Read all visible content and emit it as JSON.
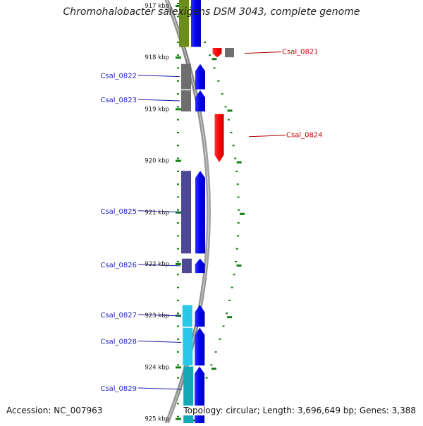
{
  "title": "Chromohalobacter salexigens DSM 3043, complete genome",
  "footer": {
    "accession": "Accession: NC_007963",
    "summary": "Topology: circular; Length: 3,696,649 bp; Genes: 3,388"
  },
  "colors": {
    "forward_gene": "#0000ee",
    "reverse_gene": "#ff0000",
    "forward_label": "#2020c0",
    "reverse_label": "#cc0000",
    "tick": "#138013",
    "backbone": "#8c8c8c",
    "cog_gray": "#6e6e6e",
    "cog_purple": "#4c4896",
    "cog_olive": "#6b8c1e",
    "cog_cyan": "#28c8e8",
    "cog_teal": "#14a8b4"
  },
  "scale_labels": [
    {
      "text": "917 kbp",
      "kbp": 917
    },
    {
      "text": "918 kbp",
      "kbp": 918
    },
    {
      "text": "919 kbp",
      "kbp": 919
    },
    {
      "text": "920 kbp",
      "kbp": 920
    },
    {
      "text": "921 kbp",
      "kbp": 921
    },
    {
      "text": "922 kbp",
      "kbp": 922
    },
    {
      "text": "923 kbp",
      "kbp": 923
    },
    {
      "text": "924 kbp",
      "kbp": 924
    },
    {
      "text": "925 kbp",
      "kbp": 925
    }
  ],
  "genes": [
    {
      "id": "Csal_0821",
      "label": "Csal_0821",
      "strand": "reverse",
      "start_kbp": 917.82,
      "end_kbp": 918.0,
      "cog": "cog_gray"
    },
    {
      "id": "Csal_0822",
      "label": "Csal_0822",
      "strand": "forward",
      "start_kbp": 918.13,
      "end_kbp": 918.62,
      "cog": "cog_gray"
    },
    {
      "id": "Csal_0823",
      "label": "Csal_0823",
      "strand": "forward",
      "start_kbp": 918.64,
      "end_kbp": 919.05,
      "cog": "cog_gray"
    },
    {
      "id": "Csal_0824",
      "label": "Csal_0824",
      "strand": "reverse",
      "start_kbp": 919.1,
      "end_kbp": 920.03,
      "cog": ""
    },
    {
      "id": "Csal_0825",
      "label": "Csal_0825",
      "strand": "forward",
      "start_kbp": 920.2,
      "end_kbp": 921.8,
      "cog": "cog_purple"
    },
    {
      "id": "Csal_0826",
      "label": "Csal_0826",
      "strand": "forward",
      "start_kbp": 921.9,
      "end_kbp": 922.18,
      "cog": "cog_purple"
    },
    {
      "id": "Csal_0827",
      "label": "Csal_0827",
      "strand": "forward",
      "start_kbp": 922.8,
      "end_kbp": 923.22,
      "cog": "cog_cyan"
    },
    {
      "id": "Csal_0828",
      "label": "Csal_0828",
      "strand": "forward",
      "start_kbp": 923.24,
      "end_kbp": 923.97,
      "cog": "cog_cyan"
    },
    {
      "id": "Csal_0829",
      "label": "Csal_0829",
      "strand": "forward",
      "start_kbp": 923.99,
      "end_kbp": 925.2,
      "cog": "cog_teal"
    }
  ],
  "upstream_gene": {
    "strand": "forward",
    "start_kbp": 916.7,
    "end_kbp": 917.8,
    "cog": "cog_olive"
  }
}
